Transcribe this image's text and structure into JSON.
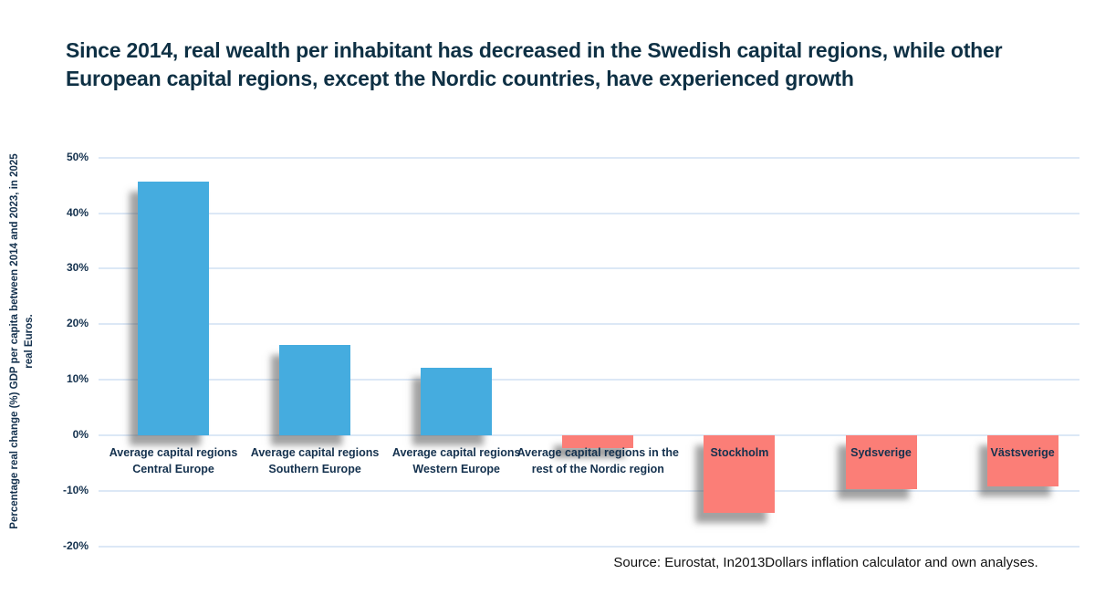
{
  "title": "Since 2014, real wealth per inhabitant has decreased in the Swedish capital regions, while other European capital regions, except the Nordic countries, have experienced growth",
  "source": "Source: Eurostat, In2013Dollars inflation calculator and own analyses.",
  "colors": {
    "bar_positive": "#45acdf",
    "bar_negative": "#fb7e77",
    "title_text": "#0e3044",
    "axis_text": "#14314e",
    "gridline": "#dce8f6",
    "source_text": "#111111"
  },
  "chart_data": {
    "type": "bar",
    "categories": [
      "Average capital regions Central Europe",
      "Average capital regions Southern Europe",
      "Average capital regions Western Europe",
      "Average capital regions in the rest of the Nordic region",
      "Stockholm",
      "Sydsverige",
      "Västsverige"
    ],
    "values": [
      45.7,
      16.2,
      12.2,
      -2.3,
      -14.0,
      -9.7,
      -9.2
    ],
    "bar_color_keys": [
      "positive",
      "positive",
      "positive",
      "negative",
      "negative",
      "negative",
      "negative"
    ],
    "title": "Since 2014, real wealth per inhabitant has decreased in the Swedish capital regions, while other European capital regions, except the Nordic countries, have experienced growth",
    "xlabel": "",
    "ylabel": "Percentage real change (%) GDP per capita between 2014 and 2023, in 2025 real Euros.",
    "ylabel_lines": [
      "Percentage real change (%) GDP per capita between 2014 and 2023, in 2025",
      "real Euros."
    ],
    "yticks": [
      50,
      40,
      30,
      20,
      10,
      0,
      -10,
      -20
    ],
    "ytick_labels": [
      "50%",
      "40%",
      "30%",
      "20%",
      "10%",
      "0%",
      "-10%",
      "-20%"
    ],
    "ylim": [
      -20,
      50
    ],
    "grid": true,
    "legend": "none"
  }
}
